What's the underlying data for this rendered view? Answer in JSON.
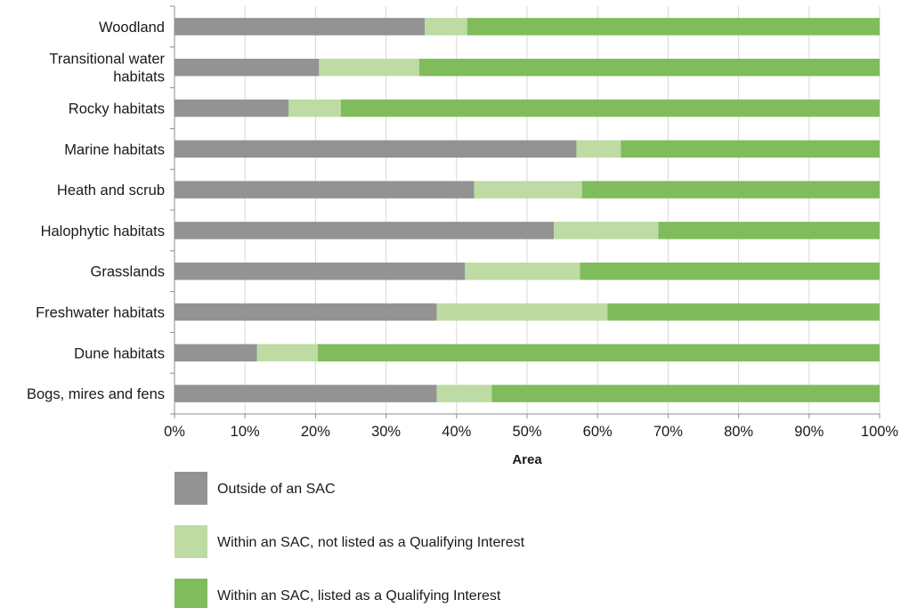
{
  "chart_data": {
    "type": "bar",
    "orientation": "horizontal",
    "stacked": true,
    "categories": [
      "Woodland",
      "Transitional water habitats",
      "Rocky habitats",
      "Marine habitats",
      "Heath and scrub",
      "Halophytic habitats",
      "Grasslands",
      "Freshwater habitats",
      "Dune habitats",
      "Bogs, mires and fens"
    ],
    "category_label_lines": [
      [
        "Woodland"
      ],
      [
        "Transitional water",
        "habitats"
      ],
      [
        "Rocky habitats"
      ],
      [
        "Marine habitats"
      ],
      [
        "Heath and scrub"
      ],
      [
        "Halophytic habitats"
      ],
      [
        "Grasslands"
      ],
      [
        "Freshwater habitats"
      ],
      [
        "Dune habitats"
      ],
      [
        "Bogs, mires and fens"
      ]
    ],
    "series": [
      {
        "name": "Outside of an SAC",
        "color": "#939393",
        "values": [
          35.5,
          20.5,
          16.2,
          57.0,
          42.5,
          53.8,
          41.2,
          37.2,
          11.7,
          37.2
        ]
      },
      {
        "name": "Within an SAC, not listed as a Qualifying Interest",
        "color": "#bddba3",
        "values": [
          6.0,
          14.2,
          7.4,
          6.3,
          15.3,
          14.8,
          16.3,
          24.2,
          8.6,
          7.8
        ]
      },
      {
        "name": "Within an SAC, listed as a Qualifying Interest",
        "color": "#80bc5b",
        "values": [
          58.5,
          65.3,
          76.4,
          36.7,
          42.2,
          31.4,
          42.5,
          38.6,
          79.7,
          55.0
        ]
      }
    ],
    "xlim": [
      0,
      100
    ],
    "x_ticks": [
      "0%",
      "10%",
      "20%",
      "30%",
      "40%",
      "50%",
      "60%",
      "70%",
      "80%",
      "90%",
      "100%"
    ],
    "xlabel": "Area",
    "ylabel": "",
    "grid": "vertical",
    "legend_position": "bottom"
  }
}
